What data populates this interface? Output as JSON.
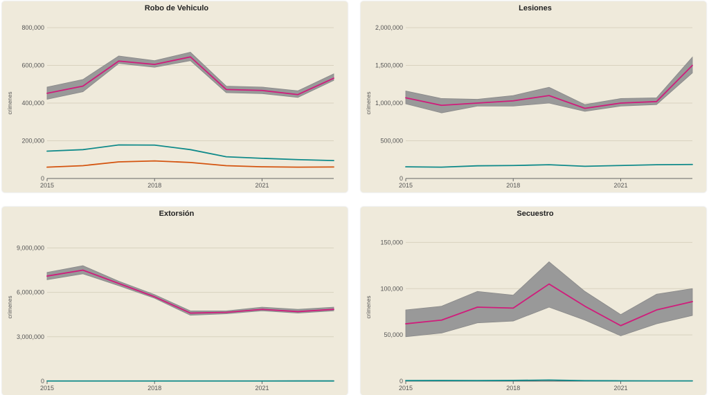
{
  "ylabel": "crímenes",
  "colors": {
    "band": "#999999",
    "band_edge": "#888888",
    "main": "#d01c7b",
    "teal": "#0f8a8a",
    "orange": "#d4540f",
    "panel_bg": "#efeadb"
  },
  "chart_data": [
    {
      "type": "line",
      "title": "Robo de Vehiculo",
      "xlabel": "",
      "ylabel": "crímenes",
      "x": [
        2015,
        2016,
        2017,
        2018,
        2019,
        2020,
        2021,
        2022,
        2023
      ],
      "xticks": [
        2015,
        2018,
        2021
      ],
      "xtick_labels": [
        "2015",
        "2018",
        "2021"
      ],
      "yticks": [
        0,
        200000,
        400000,
        600000,
        800000
      ],
      "ytick_labels": [
        "0",
        "200,000",
        "400,000",
        "600,000",
        "800,000"
      ],
      "ylim": [
        0,
        800000
      ],
      "grid": true,
      "band": {
        "lower": [
          420000,
          460000,
          610000,
          590000,
          625000,
          455000,
          450000,
          430000,
          520000
        ],
        "upper": [
          485000,
          525000,
          650000,
          625000,
          670000,
          490000,
          485000,
          465000,
          555000
        ]
      },
      "series": [
        {
          "color": "#d01c7b",
          "values": [
            452000,
            490000,
            623000,
            605000,
            645000,
            472000,
            467000,
            445000,
            532000
          ]
        },
        {
          "color": "#0f8a8a",
          "values": [
            145000,
            153000,
            178000,
            177000,
            153000,
            115000,
            107000,
            100000,
            95000
          ]
        },
        {
          "color": "#d4540f",
          "values": [
            60000,
            68000,
            88000,
            93000,
            85000,
            68000,
            62000,
            60000,
            61000
          ]
        }
      ]
    },
    {
      "type": "line",
      "title": "Lesiones",
      "xlabel": "",
      "ylabel": "crímenes",
      "x": [
        2015,
        2016,
        2017,
        2018,
        2019,
        2020,
        2021,
        2022,
        2023
      ],
      "xticks": [
        2015,
        2018,
        2021
      ],
      "xtick_labels": [
        "2015",
        "2018",
        "2021"
      ],
      "yticks": [
        0,
        500000,
        1000000,
        1500000,
        2000000
      ],
      "ytick_labels": [
        "0",
        "500,000",
        "1,000,000",
        "1,500,000",
        "2,000,000"
      ],
      "ylim": [
        0,
        2000000
      ],
      "grid": true,
      "band": {
        "lower": [
          990000,
          870000,
          960000,
          960000,
          1000000,
          890000,
          960000,
          980000,
          1400000
        ],
        "upper": [
          1160000,
          1060000,
          1050000,
          1100000,
          1210000,
          980000,
          1060000,
          1070000,
          1610000
        ]
      },
      "series": [
        {
          "color": "#d01c7b",
          "values": [
            1070000,
            970000,
            1000000,
            1030000,
            1100000,
            930000,
            1000000,
            1020000,
            1500000
          ]
        },
        {
          "color": "#0f8a8a",
          "values": [
            155000,
            150000,
            168000,
            172000,
            182000,
            162000,
            172000,
            182000,
            186000
          ]
        }
      ]
    },
    {
      "type": "line",
      "title": "Extorsión",
      "xlabel": "",
      "ylabel": "crímenes",
      "x": [
        2015,
        2016,
        2017,
        2018,
        2019,
        2020,
        2021,
        2022,
        2023
      ],
      "xticks": [
        2015,
        2018,
        2021
      ],
      "xtick_labels": [
        "2015",
        "2018",
        "2021"
      ],
      "yticks": [
        0,
        3000000,
        6000000,
        9000000
      ],
      "ytick_labels": [
        "0",
        "3,000,000",
        "6,000,000",
        "9,000,000"
      ],
      "ylim": [
        0,
        10000000
      ],
      "grid": true,
      "band": {
        "lower": [
          6850000,
          7250000,
          6450000,
          5600000,
          4450000,
          4550000,
          4750000,
          4600000,
          4750000
        ],
        "upper": [
          7350000,
          7800000,
          6750000,
          5850000,
          4750000,
          4750000,
          5000000,
          4850000,
          5000000
        ]
      },
      "series": [
        {
          "color": "#d01c7b",
          "values": [
            7100000,
            7500000,
            6600000,
            5700000,
            4600000,
            4650000,
            4850000,
            4700000,
            4850000
          ]
        },
        {
          "color": "#0f8a8a",
          "values": [
            12000,
            12000,
            12000,
            12000,
            13000,
            12000,
            13000,
            14000,
            14000
          ]
        }
      ]
    },
    {
      "type": "line",
      "title": "Secuestro",
      "xlabel": "",
      "ylabel": "crímenes",
      "x": [
        2015,
        2016,
        2017,
        2018,
        2019,
        2020,
        2021,
        2022,
        2023
      ],
      "xticks": [
        2015,
        2018,
        2021
      ],
      "xtick_labels": [
        "2015",
        "2018",
        "2021"
      ],
      "yticks": [
        0,
        50000,
        100000,
        150000
      ],
      "ytick_labels": [
        "0",
        "50,000",
        "100,000",
        "150,000"
      ],
      "ylim": [
        0,
        160000
      ],
      "grid": true,
      "band": {
        "lower": [
          48000,
          52000,
          63000,
          65000,
          80000,
          66000,
          49000,
          62000,
          71000
        ],
        "upper": [
          77000,
          81000,
          97000,
          93000,
          129000,
          97000,
          72000,
          94000,
          100000
        ]
      },
      "series": [
        {
          "color": "#d01c7b",
          "values": [
            62000,
            66000,
            80000,
            79000,
            105000,
            81000,
            60000,
            77000,
            86000
          ]
        },
        {
          "color": "#0f8a8a",
          "values": [
            600,
            700,
            600,
            800,
            1200,
            500,
            400,
            300,
            300
          ]
        }
      ]
    }
  ]
}
